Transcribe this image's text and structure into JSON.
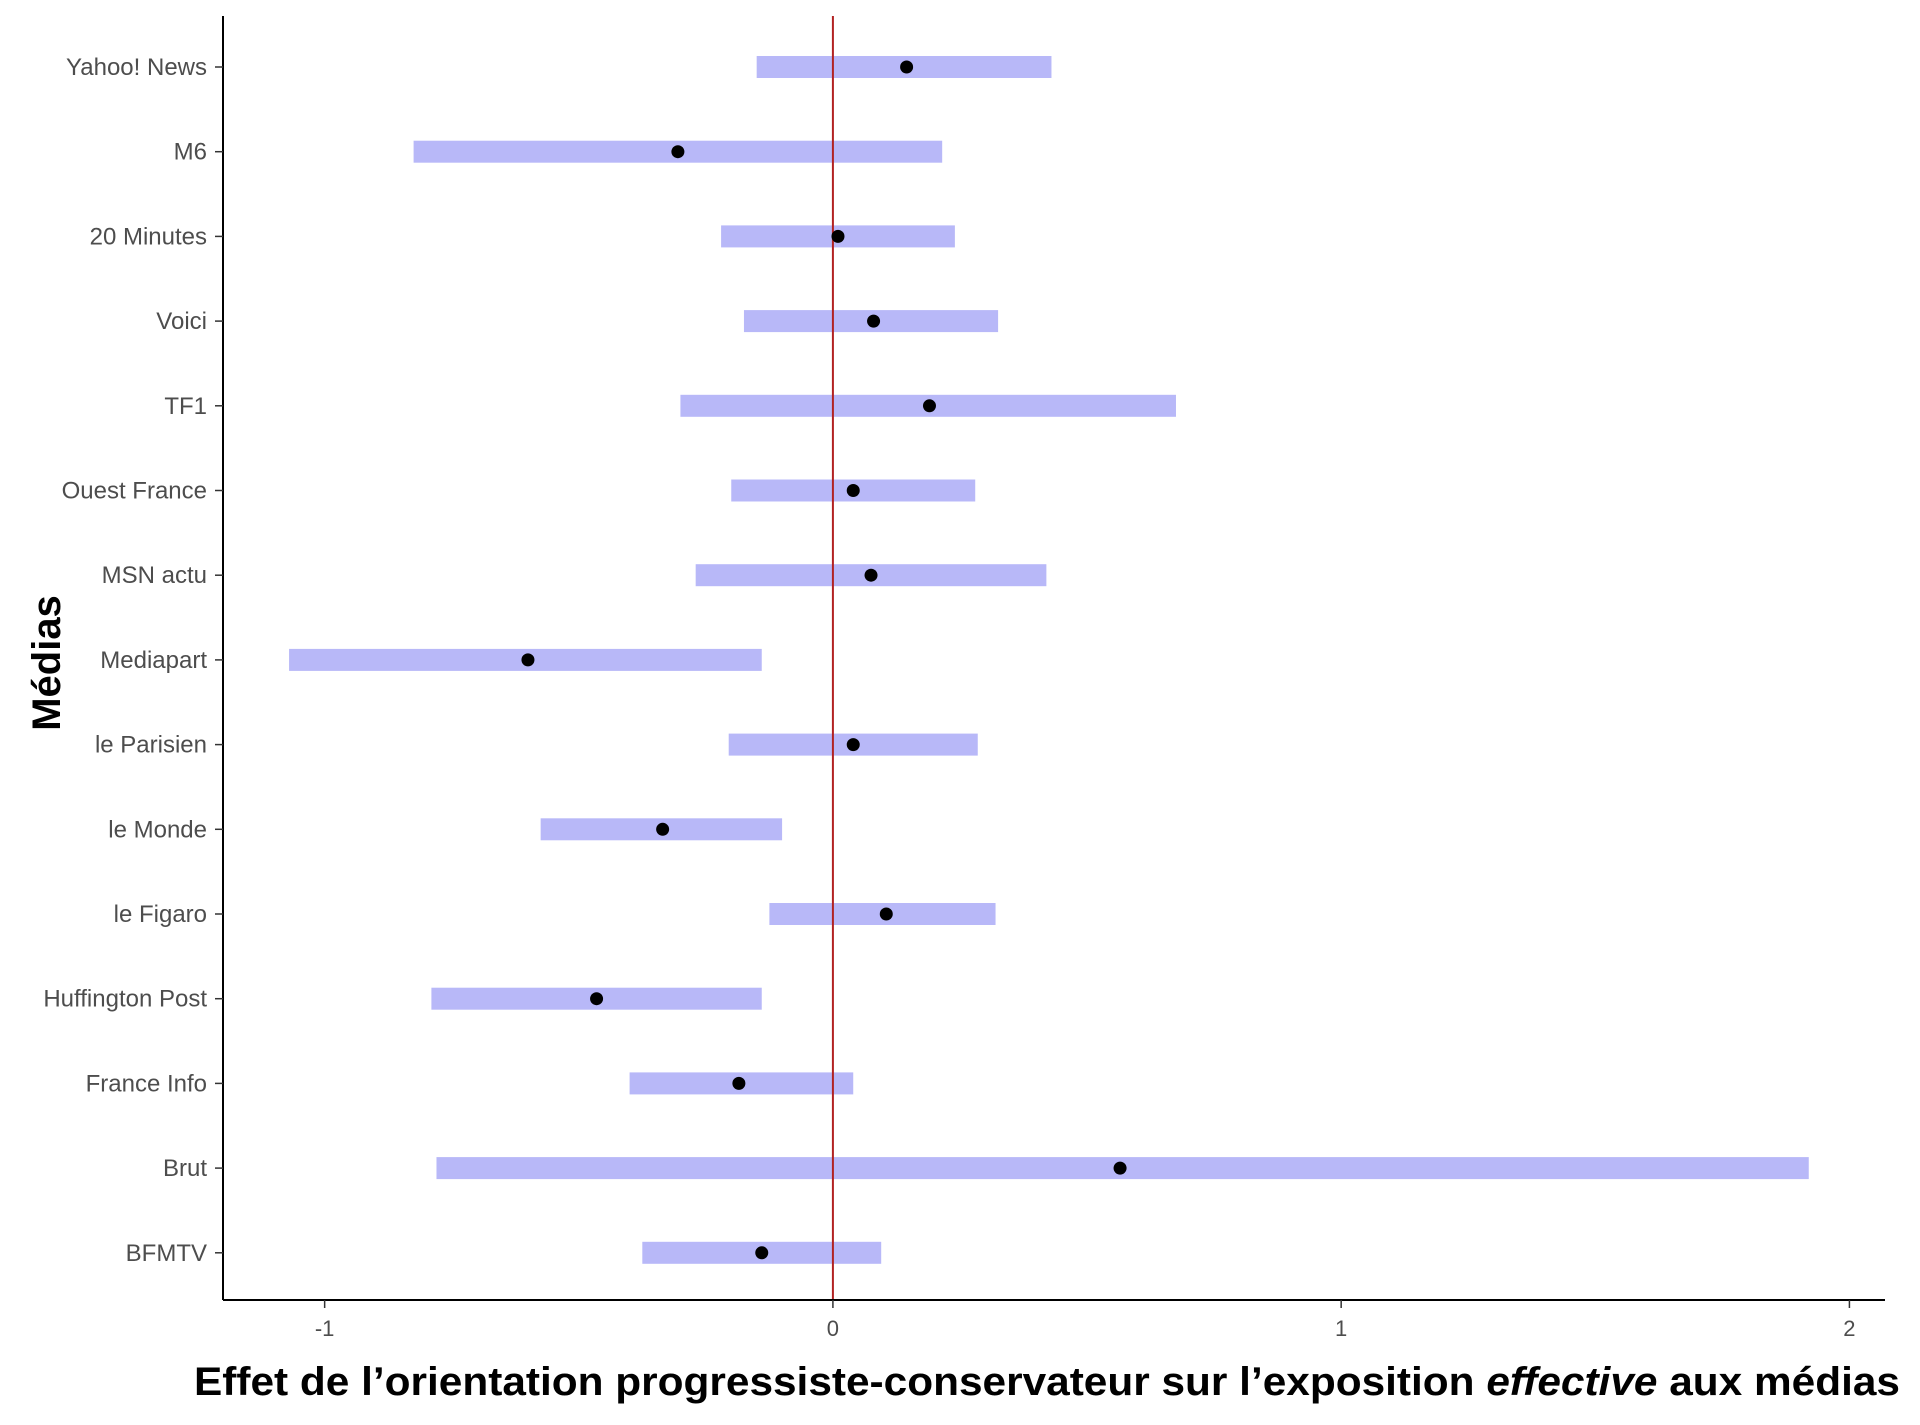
{
  "chart_data": {
    "type": "forest",
    "xlabel_parts": [
      {
        "text": "Effet de l’orientation progressiste-conservateur sur l’exposition ",
        "italic": false
      },
      {
        "text": "effective",
        "italic": true
      },
      {
        "text": " aux médias",
        "italic": false
      }
    ],
    "ylabel": "Médias",
    "xlim": [
      -1.2,
      2.07
    ],
    "xticks": [
      -1,
      0,
      1,
      2
    ],
    "xtick_labels": [
      "-1",
      "0",
      "1",
      "2"
    ],
    "reference_line": 0,
    "colors": {
      "interval": "#b8b8f8",
      "point": "#000000",
      "reference": "#b22222",
      "axis": "#000000"
    },
    "categories": [
      "Yahoo! News",
      "M6",
      "20 Minutes",
      "Voici",
      "TF1",
      "Ouest France",
      "MSN actu",
      "Mediapart",
      "le Parisien",
      "le Monde",
      "le Figaro",
      "Huffington Post",
      "France Info",
      "Brut",
      "BFMTV"
    ],
    "estimates": [
      0.145,
      -0.305,
      0.01,
      0.08,
      0.19,
      0.04,
      0.075,
      -0.6,
      0.04,
      -0.335,
      0.105,
      -0.465,
      -0.185,
      0.565,
      -0.14
    ],
    "ci_lower": [
      -0.15,
      -0.825,
      -0.22,
      -0.175,
      -0.3,
      -0.2,
      -0.27,
      -1.07,
      -0.205,
      -0.575,
      -0.125,
      -0.79,
      -0.4,
      -0.78,
      -0.375
    ],
    "ci_upper": [
      0.43,
      0.215,
      0.24,
      0.325,
      0.675,
      0.28,
      0.42,
      -0.14,
      0.285,
      -0.1,
      0.32,
      -0.14,
      0.04,
      1.92,
      0.095
    ]
  }
}
